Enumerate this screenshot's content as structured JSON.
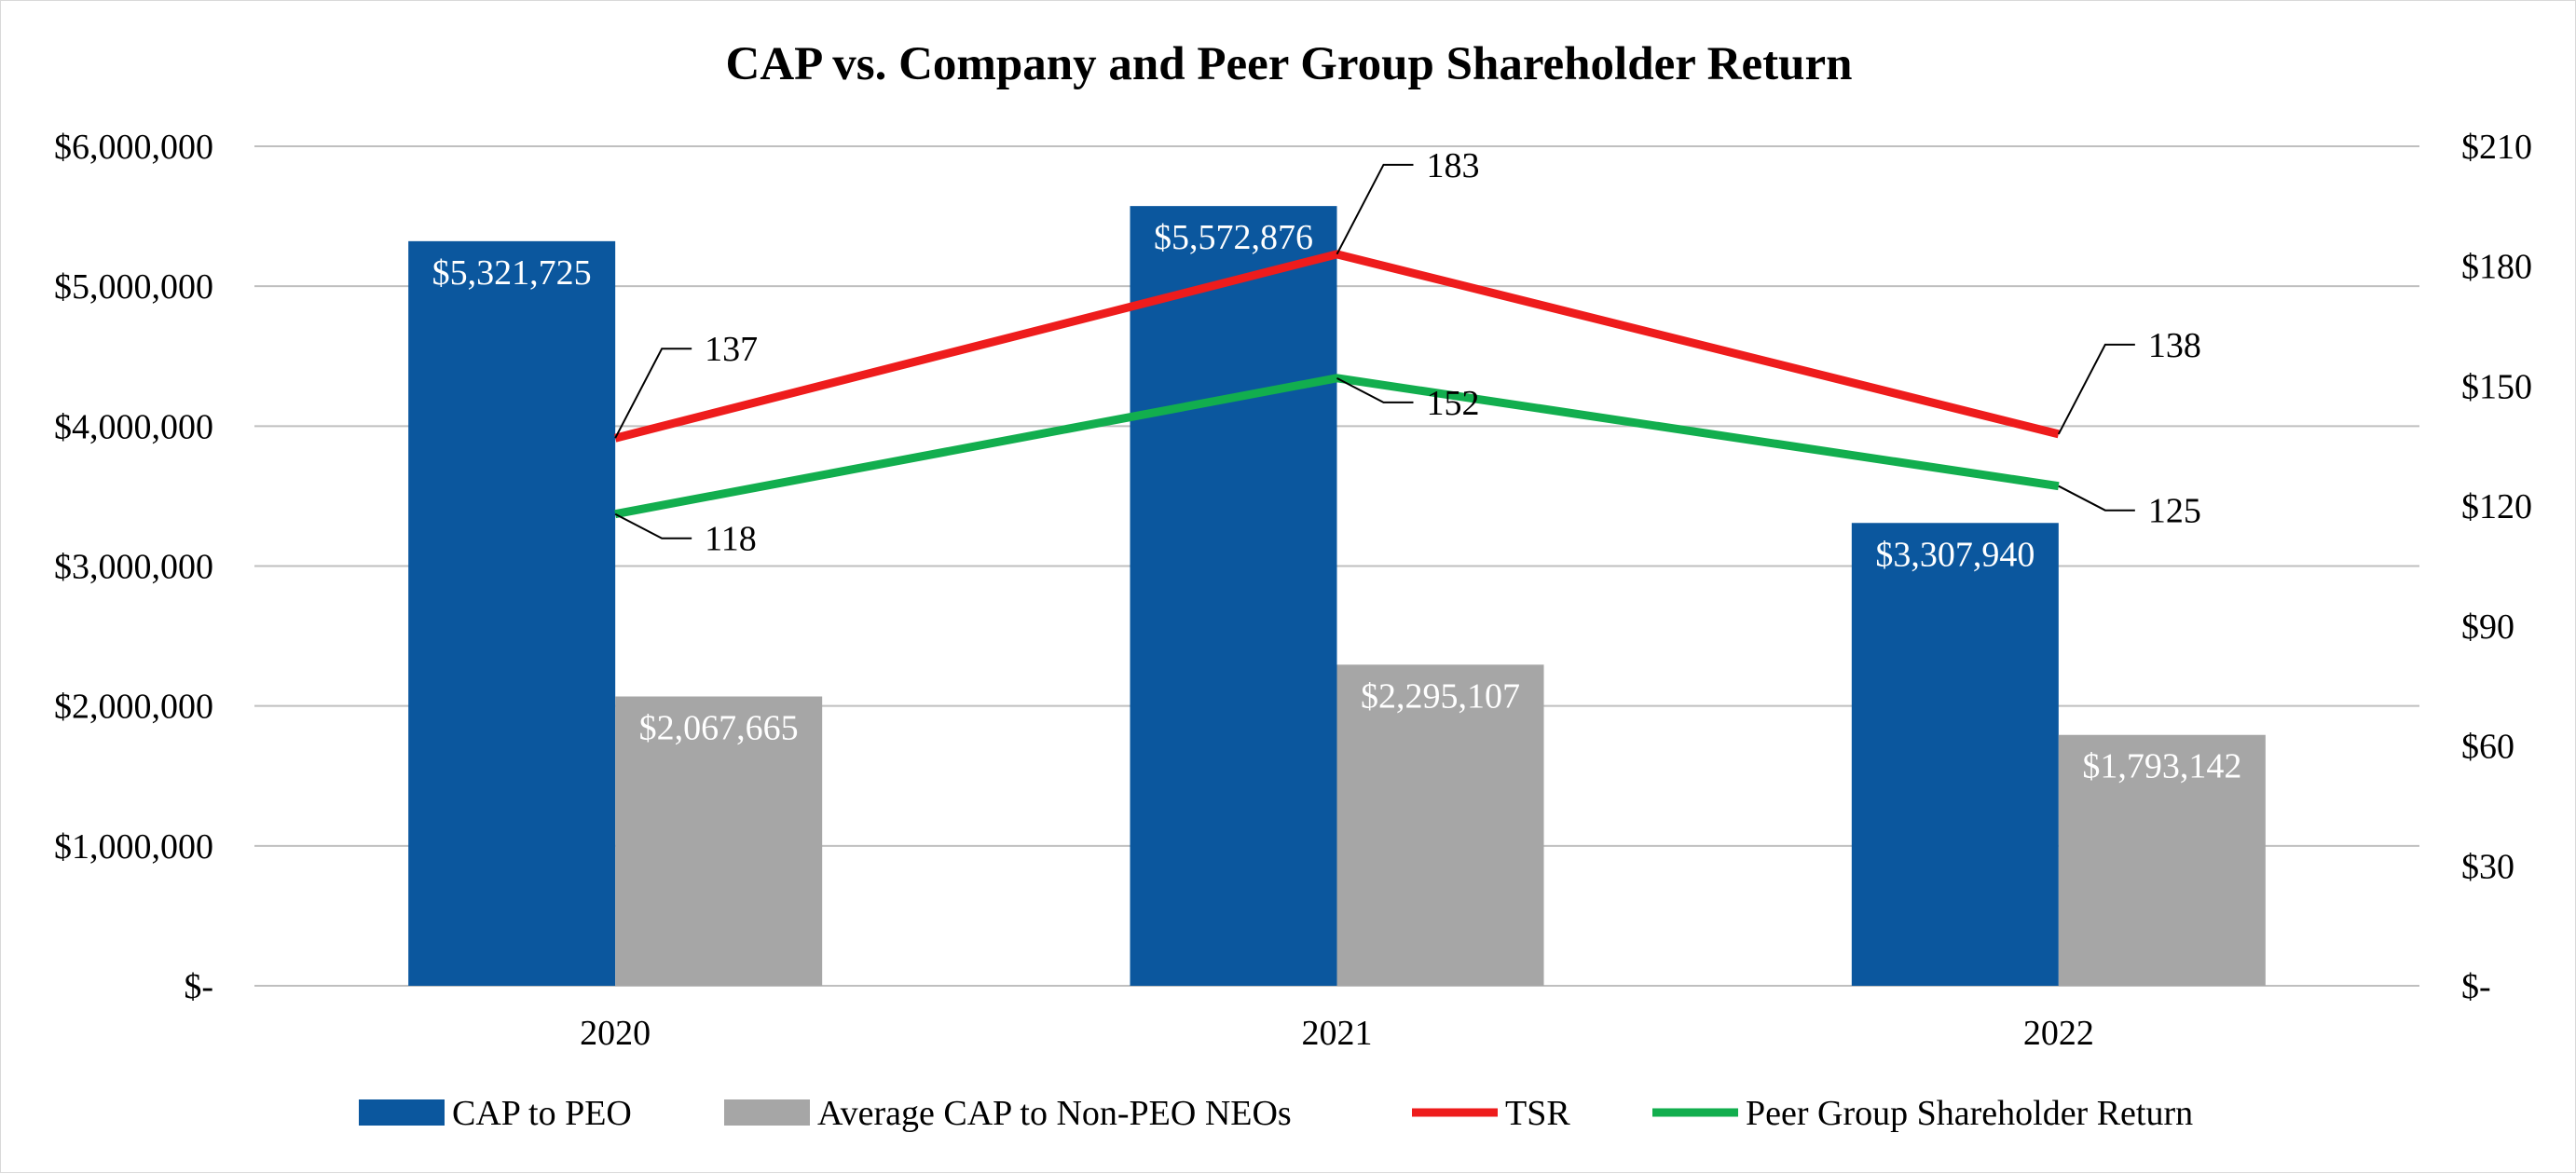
{
  "chart_data": {
    "type": "bar",
    "title": "CAP vs. Company and Peer Group Shareholder Return",
    "categories": [
      "2020",
      "2021",
      "2022"
    ],
    "bar_series": [
      {
        "name": "CAP to PEO",
        "color": "#0B579E",
        "values": [
          5321725,
          5572876,
          3307940
        ],
        "labels": [
          "$5,321,725",
          "$5,572,876",
          "$3,307,940"
        ]
      },
      {
        "name": "Average CAP to Non-PEO NEOs",
        "color": "#A6A6A6",
        "values": [
          2067665,
          2295107,
          1793142
        ],
        "labels": [
          "$2,067,665",
          "$2,295,107",
          "$1,793,142"
        ]
      }
    ],
    "line_series": [
      {
        "name": "TSR",
        "color": "#EE1C1C",
        "values": [
          137,
          183,
          138
        ],
        "labels": [
          "137",
          "183",
          "138"
        ]
      },
      {
        "name": "Peer Group Shareholder Return",
        "color": "#12AE4E",
        "values": [
          118,
          152,
          125
        ],
        "labels": [
          "118",
          "152",
          "125"
        ]
      }
    ],
    "y_left": {
      "ylim": [
        0,
        6000000
      ],
      "ticks": [
        0,
        1000000,
        2000000,
        3000000,
        4000000,
        5000000,
        6000000
      ],
      "tick_labels": [
        "$-",
        "$1,000,000",
        "$2,000,000",
        "$3,000,000",
        "$4,000,000",
        "$5,000,000",
        "$6,000,000"
      ]
    },
    "y_right": {
      "ylim": [
        0,
        210
      ],
      "ticks": [
        0,
        30,
        60,
        90,
        120,
        150,
        180,
        210
      ],
      "tick_labels": [
        "$-",
        "$30",
        "$60",
        "$90",
        "$120",
        "$150",
        "$180",
        "$210"
      ]
    },
    "grid": true,
    "gridline_color": "#BFBFBF",
    "legend_position": "bottom"
  }
}
